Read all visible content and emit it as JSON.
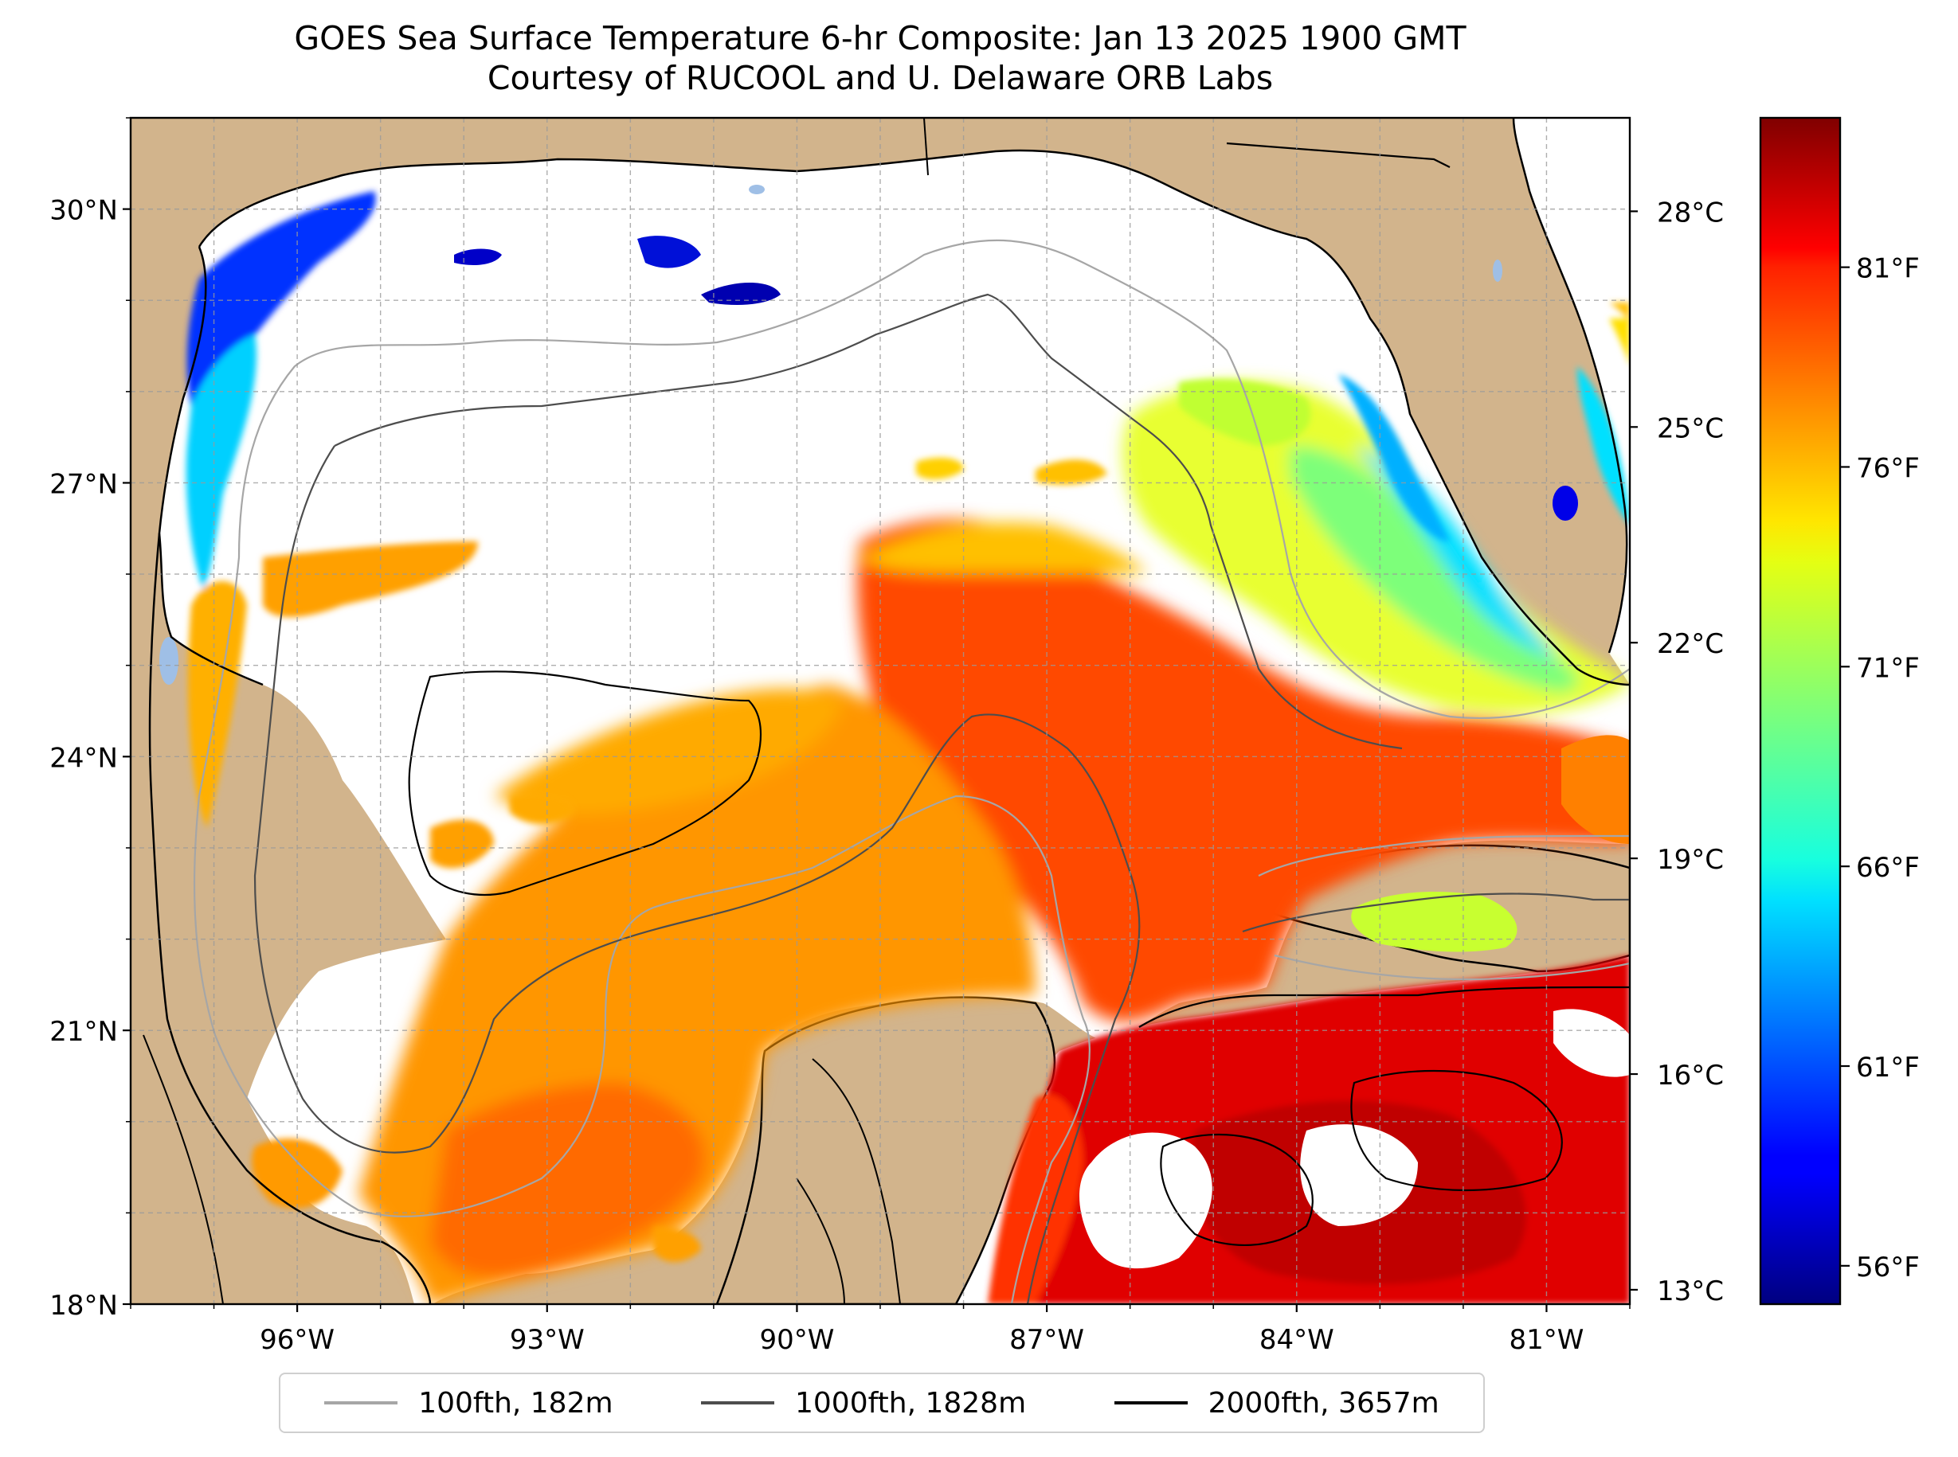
{
  "title": {
    "line1": "GOES Sea Surface Temperature 6-hr Composite: Jan 13 2025 1900 GMT",
    "line2": "Courtesy of RUCOOL and U. Delaware ORB Labs"
  },
  "map": {
    "lon_range": [
      -98.0,
      -80.0
    ],
    "lat_range": [
      18.0,
      31.0
    ],
    "lat_ticks": [
      {
        "value": 30,
        "label": "30°N"
      },
      {
        "value": 27,
        "label": "27°N"
      },
      {
        "value": 24,
        "label": "24°N"
      },
      {
        "value": 21,
        "label": "21°N"
      },
      {
        "value": 18,
        "label": "18°N"
      }
    ],
    "lon_ticks": [
      {
        "value": -96,
        "label": "96°W"
      },
      {
        "value": -93,
        "label": "93°W"
      },
      {
        "value": -90,
        "label": "90°W"
      },
      {
        "value": -87,
        "label": "87°W"
      },
      {
        "value": -84,
        "label": "84°W"
      },
      {
        "value": -81,
        "label": "81°W"
      }
    ],
    "gridlines": true,
    "colors": {
      "land": "#d2b48c",
      "no_data": "#ffffff",
      "coast": "#000000",
      "lakes": "#9fbfe6",
      "grid": "#b0b0b0"
    }
  },
  "colorbar": {
    "colormap": "jet",
    "celsius_range": [
      12.8,
      29.3
    ],
    "celsius_ticks": [
      {
        "value": 28,
        "label": "28°C"
      },
      {
        "value": 25,
        "label": "25°C"
      },
      {
        "value": 22,
        "label": "22°C"
      },
      {
        "value": 19,
        "label": "19°C"
      },
      {
        "value": 16,
        "label": "16°C"
      },
      {
        "value": 13,
        "label": "13°C"
      }
    ],
    "fahrenheit_ticks": [
      {
        "value": 81,
        "label": "81°F"
      },
      {
        "value": 76,
        "label": "76°F"
      },
      {
        "value": 71,
        "label": "71°F"
      },
      {
        "value": 66,
        "label": "66°F"
      },
      {
        "value": 61,
        "label": "61°F"
      },
      {
        "value": 56,
        "label": "56°F"
      }
    ]
  },
  "legend": {
    "items": [
      {
        "label": "100fth, 182m",
        "color": "#a6a6a6"
      },
      {
        "label": "1000fth, 1828m",
        "color": "#4d4d4d"
      },
      {
        "label": "2000fth, 3657m",
        "color": "#000000"
      }
    ]
  }
}
